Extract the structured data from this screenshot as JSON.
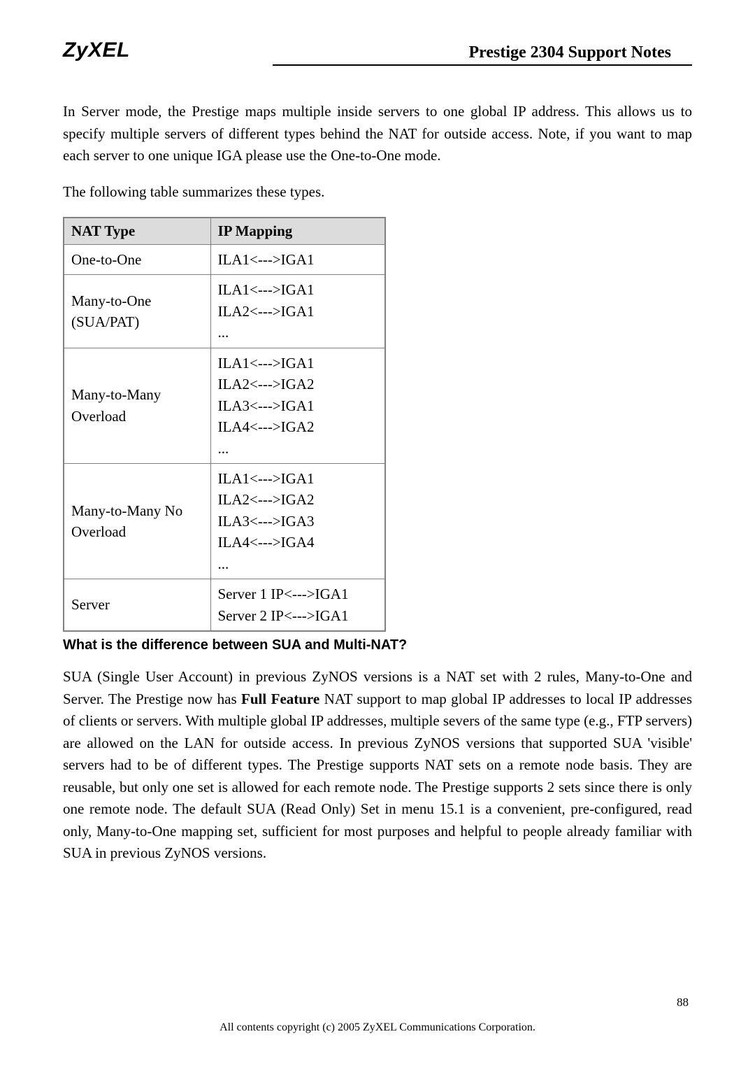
{
  "header": {
    "logo": "ZyXEL",
    "title": "Prestige 2304 Support Notes"
  },
  "intro_para": "In Server mode, the Prestige maps multiple inside servers to one global IP address. This allows us to specify multiple servers of different types behind the NAT for outside access. Note, if you want to map each server to one unique IGA please use the One-to-One mode.",
  "summary_line": "The following table summarizes these types.",
  "table": {
    "headers": [
      "NAT Type",
      "IP Mapping"
    ],
    "rows": [
      {
        "type": "One-to-One",
        "mapping": "ILA1<--->IGA1"
      },
      {
        "type": "Many-to-One\n(SUA/PAT)",
        "mapping": "ILA1<--->IGA1\nILA2<--->IGA1\n..."
      },
      {
        "type": "Many-to-Many\nOverload",
        "mapping": "ILA1<--->IGA1\nILA2<--->IGA2\nILA3<--->IGA1\nILA4<--->IGA2\n..."
      },
      {
        "type": "Many-to-Many No\nOverload",
        "mapping": "ILA1<--->IGA1\nILA2<--->IGA2\nILA3<--->IGA3\nILA4<--->IGA4\n..."
      },
      {
        "type": "Server",
        "mapping": "Server 1 IP<--->IGA1\nServer 2 IP<--->IGA1"
      }
    ]
  },
  "q_heading": "What is the difference between SUA and Multi-NAT?",
  "body_para_pre": "SUA (Single User Account) in previous ZyNOS versions is a NAT set with 2 rules, Many-to-One and Server. The Prestige now has ",
  "body_para_bold": "Full Feature",
  "body_para_post": " NAT support to map global IP addresses to local IP addresses of clients or servers. With multiple global IP addresses, multiple severs of the same type (e.g., FTP servers) are allowed on the LAN for outside access. In previous ZyNOS versions that supported SUA 'visible' servers had to be of different types. The Prestige supports NAT sets on a remote node basis. They are reusable, but only one set is allowed for each remote node. The Prestige supports 2 sets since there is only one remote node. The default SUA (Read Only) Set in menu 15.1 is a convenient, pre-configured, read only, Many-to-One mapping set, sufficient for most purposes and helpful to people already familiar with SUA in previous ZyNOS versions.",
  "footer": "All contents copyright (c) 2005 ZyXEL Communications Corporation.",
  "page_num": "88"
}
